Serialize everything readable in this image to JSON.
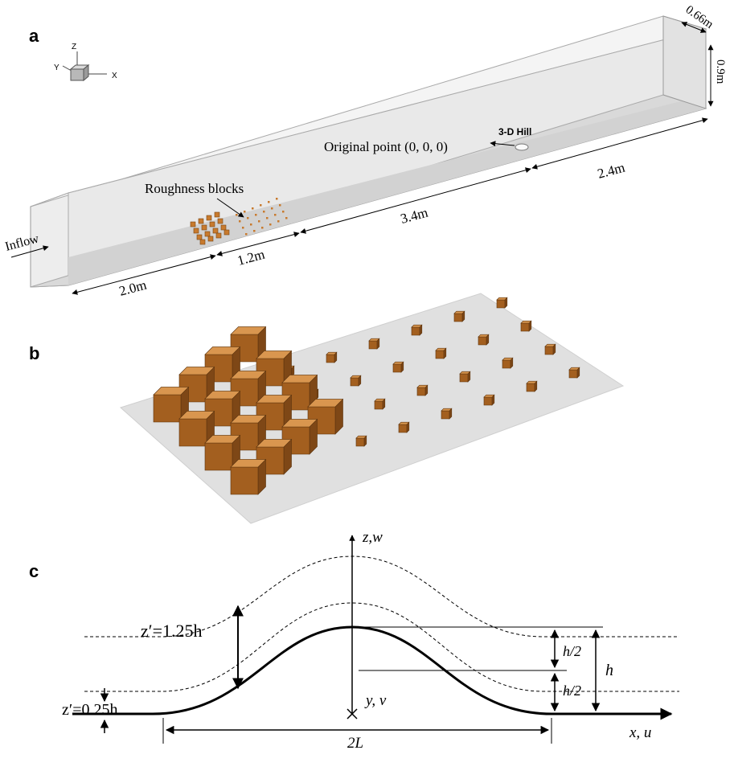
{
  "panels": {
    "a": "a",
    "b": "b",
    "c": "c"
  },
  "axes_triad": {
    "x": "X",
    "y": "Y",
    "z": "Z"
  },
  "tunnel": {
    "inflow": "Inflow",
    "roughness_blocks": "Roughness blocks",
    "hill": "3-D Hill",
    "origin": "Original point (0, 0, 0)",
    "dim_2_0": "2.0m",
    "dim_1_2": "1.2m",
    "dim_3_4": "3.4m",
    "dim_2_4": "2.4m",
    "dim_width": "0.66m",
    "dim_height": "0.9m"
  },
  "profile": {
    "z_axis": "z,w",
    "x_axis": "x, u",
    "y_label": "y, v",
    "z125": "z′=1.25h",
    "z025": "z′=0.25h",
    "h_half_1": "h/2",
    "h_half_2": "h/2",
    "h": "h",
    "two_l": "2L"
  }
}
